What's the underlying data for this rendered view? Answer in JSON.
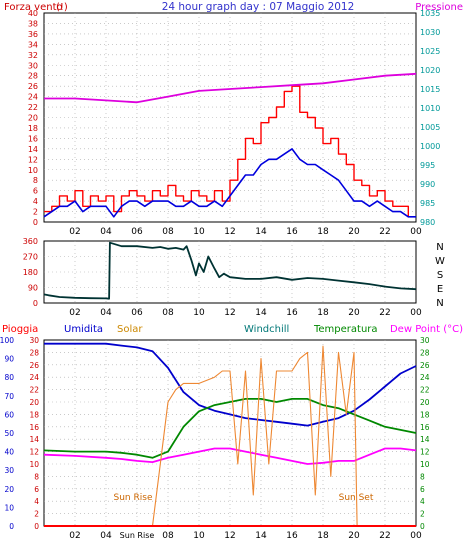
{
  "chart_data": [
    {
      "id": "wind-pressure",
      "type": "line",
      "title": "24 hour graph day : 07 Maggio 2012",
      "left_axis_label": "Forza vento",
      "left_axis_unit": "(!)",
      "right_axis_label": "Pressione",
      "x_ticks": [
        "02",
        "04",
        "06",
        "08",
        "10",
        "12",
        "14",
        "16",
        "18",
        "20",
        "22",
        "00"
      ],
      "xlim": [
        0,
        24
      ],
      "y_left_ticks": [
        "0",
        "2",
        "4",
        "6",
        "8",
        "10",
        "12",
        "14",
        "16",
        "18",
        "20",
        "22",
        "24",
        "26",
        "28",
        "30",
        "32",
        "34",
        "36",
        "38",
        "40"
      ],
      "ylim_left": [
        0,
        40
      ],
      "y_right_ticks": [
        "980",
        "985",
        "990",
        "995",
        "1000",
        "1005",
        "1010",
        "1015",
        "1020",
        "1025",
        "1030",
        "1035"
      ],
      "ylim_right": [
        980,
        1035
      ],
      "grid": true,
      "colors": {
        "gust": "#ff0000",
        "speed": "#0000dd",
        "pressure": "#dd00dd",
        "left_axis": "#cc0000",
        "right_axis": "#009999",
        "title": "#3333cc"
      },
      "series": [
        {
          "role": "gust",
          "x": [
            0,
            0.5,
            1,
            1.5,
            2,
            2.5,
            3,
            3.5,
            4,
            4.5,
            5,
            5.5,
            6,
            6.5,
            7,
            7.5,
            8,
            8.5,
            9,
            9.5,
            10,
            10.5,
            11,
            11.5,
            12,
            12.5,
            13,
            13.5,
            14,
            14.5,
            15,
            15.5,
            16,
            16.5,
            17,
            17.5,
            18,
            18.5,
            19,
            19.5,
            20,
            20.5,
            21,
            21.5,
            22,
            22.5,
            23,
            23.5,
            24
          ],
          "values": [
            2,
            3,
            5,
            4,
            6,
            3,
            5,
            4,
            5,
            2,
            5,
            6,
            5,
            4,
            6,
            5,
            7,
            5,
            4,
            6,
            5,
            4,
            6,
            4,
            8,
            12,
            16,
            15,
            19,
            20,
            22,
            25,
            26,
            21,
            20,
            18,
            15,
            16,
            13,
            11,
            8,
            7,
            5,
            6,
            4,
            3,
            3,
            1,
            1
          ]
        },
        {
          "role": "speed",
          "x": [
            0,
            0.5,
            1,
            1.5,
            2,
            2.5,
            3,
            3.5,
            4,
            4.5,
            5,
            5.5,
            6,
            6.5,
            7,
            7.5,
            8,
            8.5,
            9,
            9.5,
            10,
            10.5,
            11,
            11.5,
            12,
            12.5,
            13,
            13.5,
            14,
            14.5,
            15,
            15.5,
            16,
            16.5,
            17,
            17.5,
            18,
            18.5,
            19,
            19.5,
            20,
            20.5,
            21,
            21.5,
            22,
            22.5,
            23,
            23.5,
            24
          ],
          "values": [
            1,
            2,
            3,
            3,
            4,
            2,
            3,
            3,
            3,
            1,
            3,
            4,
            4,
            3,
            4,
            4,
            4,
            3,
            3,
            4,
            3,
            3,
            4,
            3,
            5,
            7,
            9,
            9,
            11,
            12,
            12,
            13,
            14,
            12,
            11,
            11,
            10,
            9,
            8,
            6,
            4,
            4,
            3,
            4,
            3,
            2,
            2,
            1,
            1
          ]
        },
        {
          "role": "pressure",
          "axis": "right",
          "x": [
            0,
            2,
            4,
            6,
            8,
            10,
            12,
            14,
            16,
            18,
            20,
            22,
            24
          ],
          "values": [
            1012.5,
            1012.5,
            1012,
            1011.5,
            1013,
            1014.5,
            1015,
            1015.5,
            1016,
            1016.5,
            1017.5,
            1018.5,
            1019
          ]
        }
      ]
    },
    {
      "id": "wind-direction",
      "type": "line",
      "x_ticks": [
        "02",
        "04",
        "06",
        "08",
        "10",
        "12",
        "14",
        "16",
        "18",
        "20",
        "22",
        "00"
      ],
      "xlim": [
        0,
        24
      ],
      "y_ticks": [
        "0",
        "90",
        "180",
        "270",
        "360"
      ],
      "ylim": [
        0,
        360
      ],
      "right_labels": [
        "N",
        "W",
        "S",
        "E",
        "N"
      ],
      "grid": true,
      "colors": {
        "line": "#003333",
        "left_axis": "#cc0000"
      },
      "series": [
        {
          "x": [
            0,
            0.3,
            1,
            2,
            3,
            4,
            4.2,
            4.25,
            5,
            6,
            7,
            7.5,
            8,
            8.5,
            9,
            9.2,
            9.5,
            9.8,
            10,
            10.3,
            10.6,
            11,
            11.3,
            11.6,
            12,
            13,
            14,
            15,
            16,
            17,
            18,
            19,
            20,
            21,
            22,
            23,
            24
          ],
          "values": [
            50,
            45,
            35,
            30,
            28,
            27,
            25,
            350,
            330,
            330,
            320,
            325,
            315,
            320,
            310,
            330,
            250,
            160,
            230,
            180,
            270,
            200,
            150,
            170,
            150,
            140,
            140,
            150,
            135,
            145,
            140,
            130,
            120,
            110,
            95,
            85,
            80
          ]
        }
      ]
    },
    {
      "id": "weather-multi",
      "type": "line",
      "legend": [
        "Pioggia",
        "Umidita",
        "Solar",
        "Windchill",
        "Temperatura",
        "Dew Point (°C)"
      ],
      "x_ticks": [
        "02",
        "04",
        "Sun Rise",
        "08",
        "10",
        "12",
        "14",
        "16",
        "18",
        "20",
        "22",
        "00"
      ],
      "xlim": [
        0,
        24
      ],
      "y_left_outer_ticks": [
        "0",
        "10",
        "20",
        "30",
        "40",
        "50",
        "60",
        "70",
        "80",
        "90",
        "100"
      ],
      "y_left_inner_ticks": [
        "0",
        "2",
        "4",
        "6",
        "8",
        "10",
        "12",
        "14",
        "16",
        "18",
        "20",
        "22",
        "24",
        "26",
        "28",
        "30"
      ],
      "y_right_ticks": [
        "0",
        "2",
        "4",
        "6",
        "8",
        "10",
        "12",
        "14",
        "16",
        "18",
        "20",
        "22",
        "24",
        "26",
        "28",
        "30"
      ],
      "ylim": [
        0,
        30
      ],
      "annotations": [
        "Sun Rise",
        "Sun Set"
      ],
      "grid": true,
      "colors": {
        "rain": "#ff0000",
        "humidity": "#0000cc",
        "solar": "#ee8833",
        "windchill": "#009999",
        "temperature": "#008800",
        "dewpoint": "#ff00ff",
        "outer_axis": "#0000cc",
        "inner_axis": "#cc0000",
        "right_axis": "#008800",
        "annotation": "#cc6600"
      },
      "series": [
        {
          "role": "humidity",
          "x": [
            0,
            2,
            4,
            5,
            6,
            7,
            8,
            9,
            10,
            11,
            12,
            13,
            14,
            15,
            16,
            17,
            18,
            19,
            20,
            21,
            22,
            23,
            24
          ],
          "values": [
            98,
            98,
            98,
            97,
            96,
            94,
            85,
            72,
            65,
            62,
            60,
            58,
            57,
            56,
            55,
            54,
            56,
            58,
            62,
            68,
            75,
            82,
            86
          ]
        },
        {
          "role": "temperature",
          "x": [
            0,
            2,
            4,
            5,
            6,
            7,
            8,
            9,
            10,
            11,
            12,
            13,
            14,
            15,
            16,
            17,
            18,
            19,
            20,
            21,
            22,
            23,
            24
          ],
          "values": [
            12.2,
            12,
            12,
            11.8,
            11.5,
            11,
            12,
            16,
            18.5,
            19.5,
            20,
            20.5,
            20.5,
            20,
            20.5,
            20.5,
            19.5,
            19,
            18,
            17,
            16,
            15.5,
            15
          ]
        },
        {
          "role": "dewpoint",
          "x": [
            0,
            2,
            4,
            5,
            6,
            7,
            8,
            9,
            10,
            11,
            12,
            13,
            14,
            15,
            16,
            17,
            18,
            19,
            20,
            21,
            22,
            23,
            24
          ],
          "values": [
            11.5,
            11.3,
            11,
            10.8,
            10.5,
            10.3,
            11,
            11.5,
            12,
            12.5,
            12.5,
            12,
            11.5,
            11,
            10.5,
            10,
            10.2,
            10.5,
            10.5,
            11.5,
            12.5,
            12.5,
            12.2
          ]
        },
        {
          "role": "solar",
          "x": [
            0,
            1,
            2,
            3,
            4,
            5,
            5.3,
            5.5,
            6,
            6.5,
            7,
            7.5,
            8,
            8.5,
            9,
            10,
            11,
            11.5,
            12,
            12.5,
            13,
            13.5,
            14,
            14.5,
            15,
            15.5,
            16,
            16.5,
            17,
            17.5,
            18,
            18.5,
            19,
            19.5,
            20,
            20.2,
            21,
            22,
            23,
            24
          ],
          "values": [
            0,
            0,
            0,
            0,
            0,
            0,
            0,
            0,
            0,
            0,
            0,
            10,
            20,
            22,
            23,
            23,
            24,
            25,
            25,
            10,
            25,
            5,
            27,
            10,
            25,
            25,
            25,
            27,
            28,
            5,
            29,
            8,
            28,
            18,
            28,
            0,
            0,
            0,
            0,
            0
          ]
        },
        {
          "role": "rain",
          "x": [
            0,
            24
          ],
          "values": [
            0,
            0
          ]
        }
      ]
    }
  ]
}
